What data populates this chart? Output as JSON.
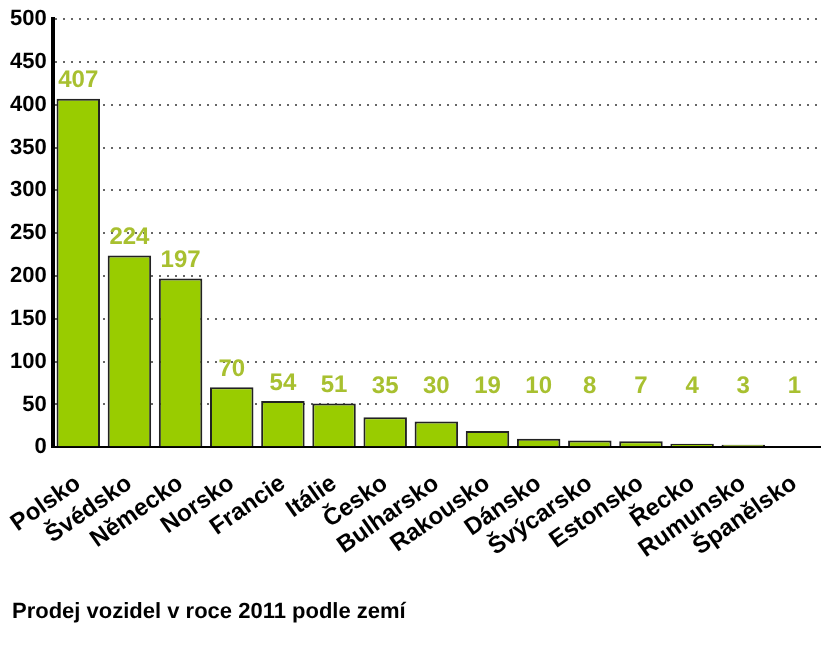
{
  "chart_data": {
    "type": "bar",
    "categories": [
      "Polsko",
      "Švédsko",
      "Německo",
      "Norsko",
      "Francie",
      "Itálie",
      "Česko",
      "Bulharsko",
      "Rakousko",
      "Dánsko",
      "Švýcarsko",
      "Estonsko",
      "Řecko",
      "Rumunsko",
      "Španělsko"
    ],
    "values": [
      407,
      224,
      197,
      70,
      54,
      51,
      35,
      30,
      19,
      10,
      8,
      7,
      4,
      3,
      1
    ],
    "color": "#99cc00",
    "ylim": [
      0,
      500
    ],
    "yticks": [
      0,
      50,
      100,
      150,
      200,
      250,
      300,
      350,
      400,
      450,
      500
    ],
    "grid": "y",
    "data_labels": true,
    "legend": false,
    "annotations": [
      "Prodej vozidel v roce 2011 podle zemí"
    ]
  }
}
